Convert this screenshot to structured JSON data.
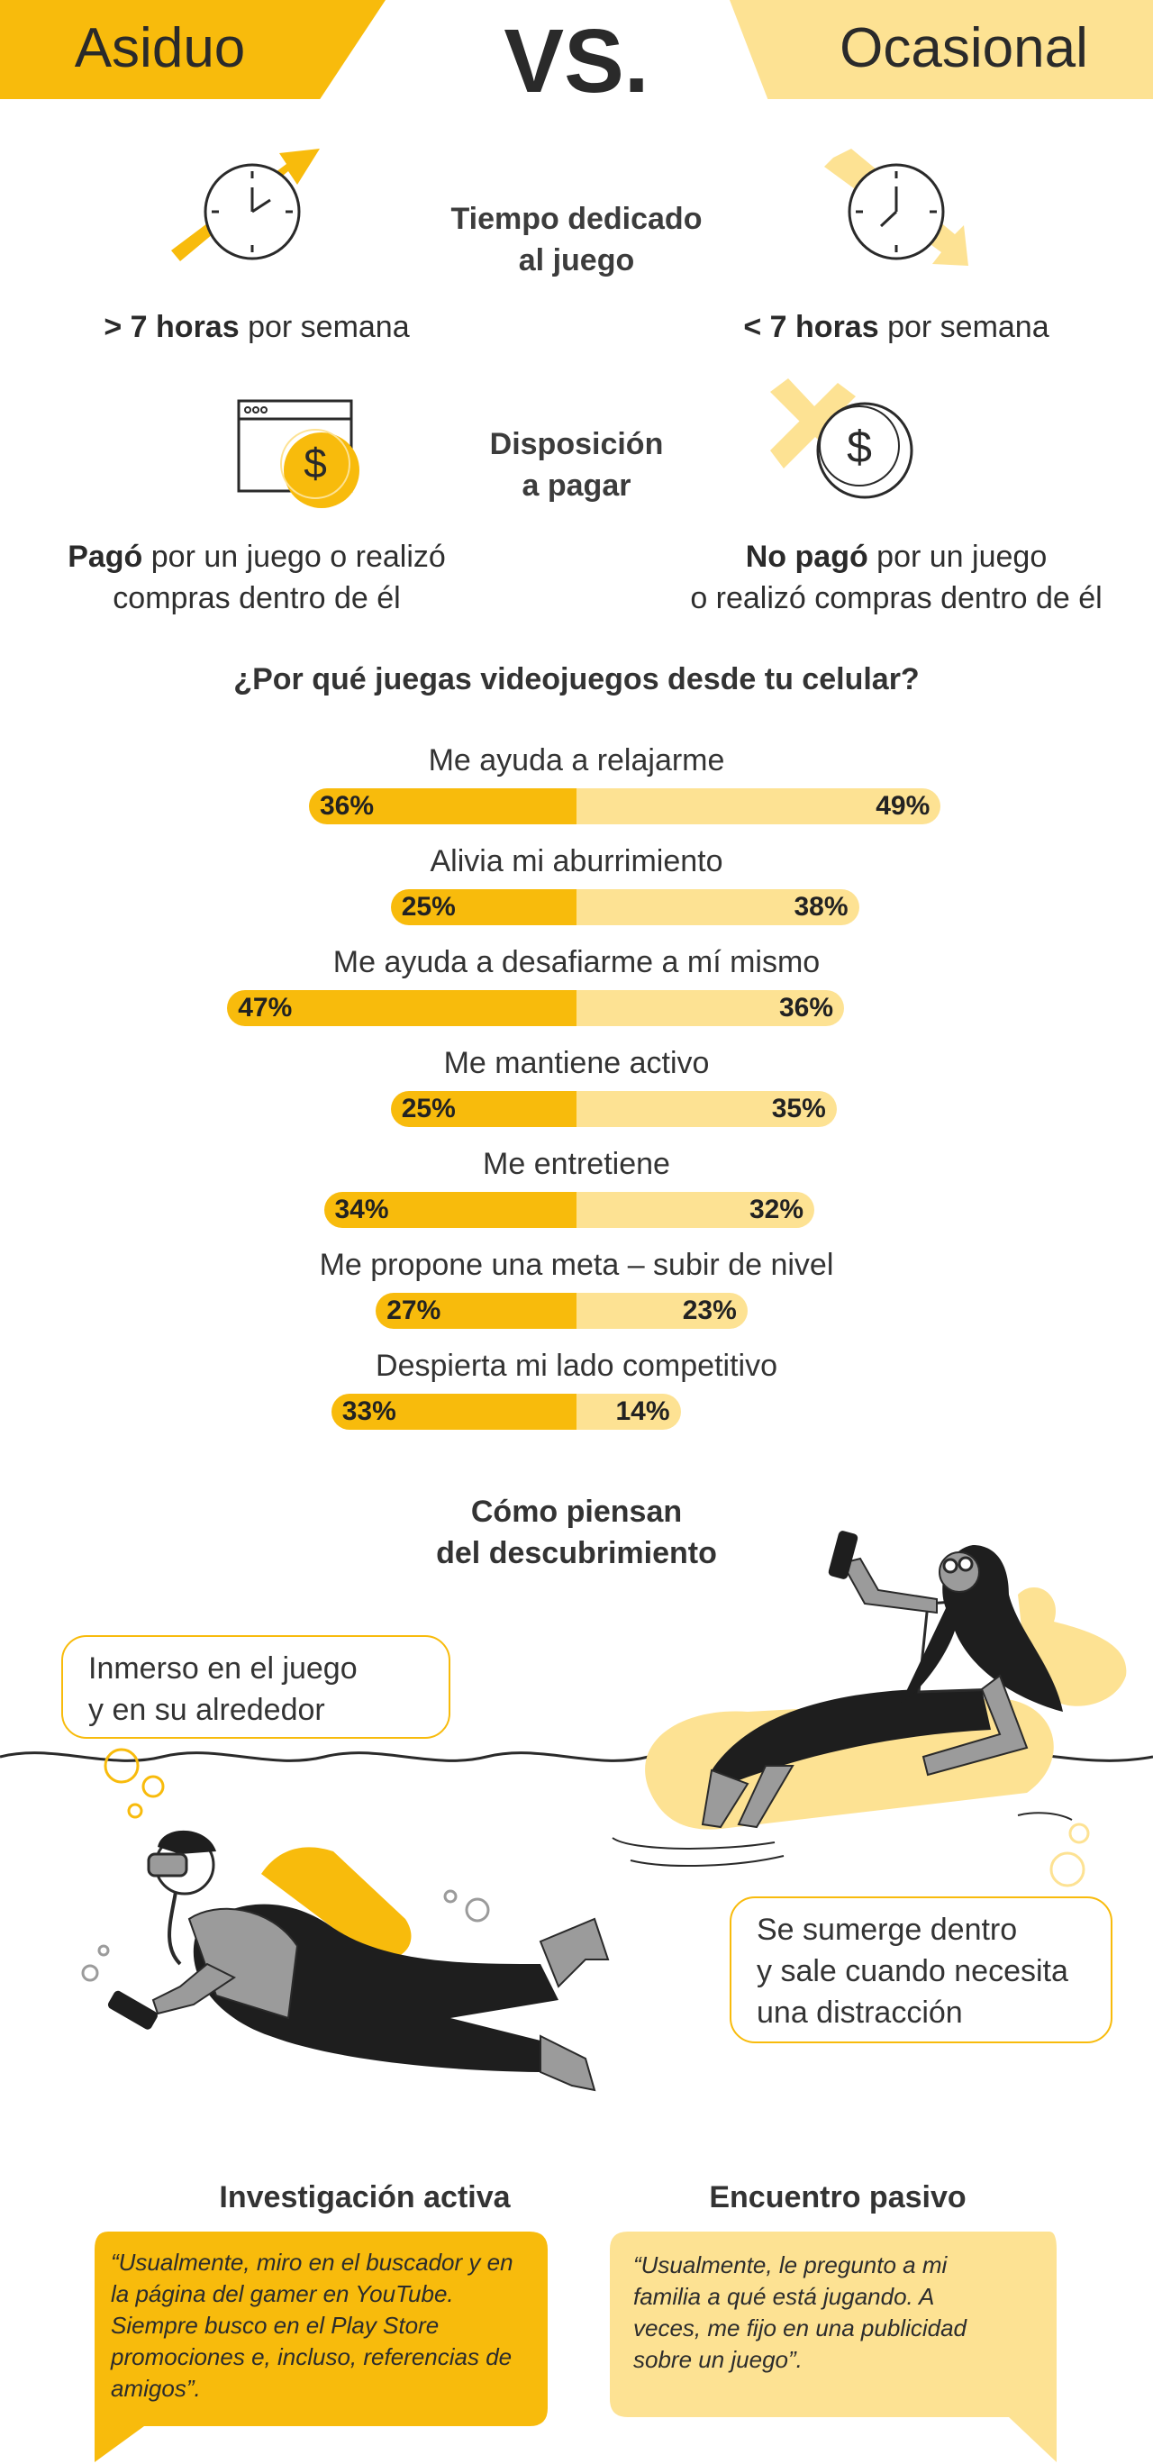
{
  "header": {
    "left": "Asiduo",
    "vs": "VS.",
    "right": "Ocasional"
  },
  "time": {
    "label": "Tiempo dedicado al juego",
    "label_line1": "Tiempo dedicado",
    "label_line2": "al juego",
    "left_bold": "> 7 horas",
    "left_rest": " por semana",
    "right_bold": "< 7 horas",
    "right_rest": " por semana"
  },
  "pay": {
    "label_line1": "Disposición",
    "label_line2": "a pagar",
    "left_bold": "Pagó",
    "left_rest": " por un juego o realizó",
    "left_line2": "compras dentro de él",
    "right_bold": "No pagó",
    "right_rest": " por un juego",
    "right_line2": "o realizó compras dentro de él"
  },
  "chart_data": {
    "type": "bar",
    "title": "¿Por qué juegas videojuegos desde tu celular?",
    "categories": [
      "Me ayuda a relajarme",
      "Alivia mi aburrimiento",
      "Me ayuda a desafiarme a mí mismo",
      "Me mantiene activo",
      "Me entretiene",
      "Me propone una meta – subir de nivel",
      "Despierta mi lado competitivo"
    ],
    "series": [
      {
        "name": "Asiduo",
        "values": [
          36,
          25,
          47,
          25,
          34,
          27,
          33
        ],
        "labels": [
          "36%",
          "25%",
          "47%",
          "25%",
          "34%",
          "27%",
          "33%"
        ],
        "color": "#f8bb0c"
      },
      {
        "name": "Ocasional",
        "values": [
          49,
          38,
          36,
          35,
          32,
          23,
          14
        ],
        "labels": [
          "49%",
          "38%",
          "36%",
          "35%",
          "32%",
          "23%",
          "14%"
        ],
        "color": "#fde293"
      }
    ]
  },
  "discovery": {
    "title_line1": "Cómo piensan",
    "title_line2": "del descubrimiento",
    "left_bubble_line1": "Inmerso en el juego",
    "left_bubble_line2": "y en su alrededor",
    "right_bubble_line1": "Se sumerge dentro",
    "right_bubble_line2": "y sale cuando necesita",
    "right_bubble_line3": "una distracción"
  },
  "research": {
    "left_title": "Investigación activa",
    "left_quote": "“Usualmente, miro en el buscador y en la página del gamer en YouTube. Siempre busco en el Play Store promociones e, incluso, referencias de amigos”.",
    "right_title": "Encuentro pasivo",
    "right_quote": "“Usualmente, le pregunto a mi familia a qué está jugando. A veces, me fijo en una publicidad sobre un juego”."
  },
  "colors": {
    "accent": "#f8bb0c",
    "accent_light": "#fde293",
    "text": "#333333"
  },
  "icons": [
    "clock-up-icon",
    "clock-down-icon",
    "browser-dollar-icon",
    "dollar-cross-icon",
    "diver-illustration",
    "float-woman-illustration"
  ]
}
